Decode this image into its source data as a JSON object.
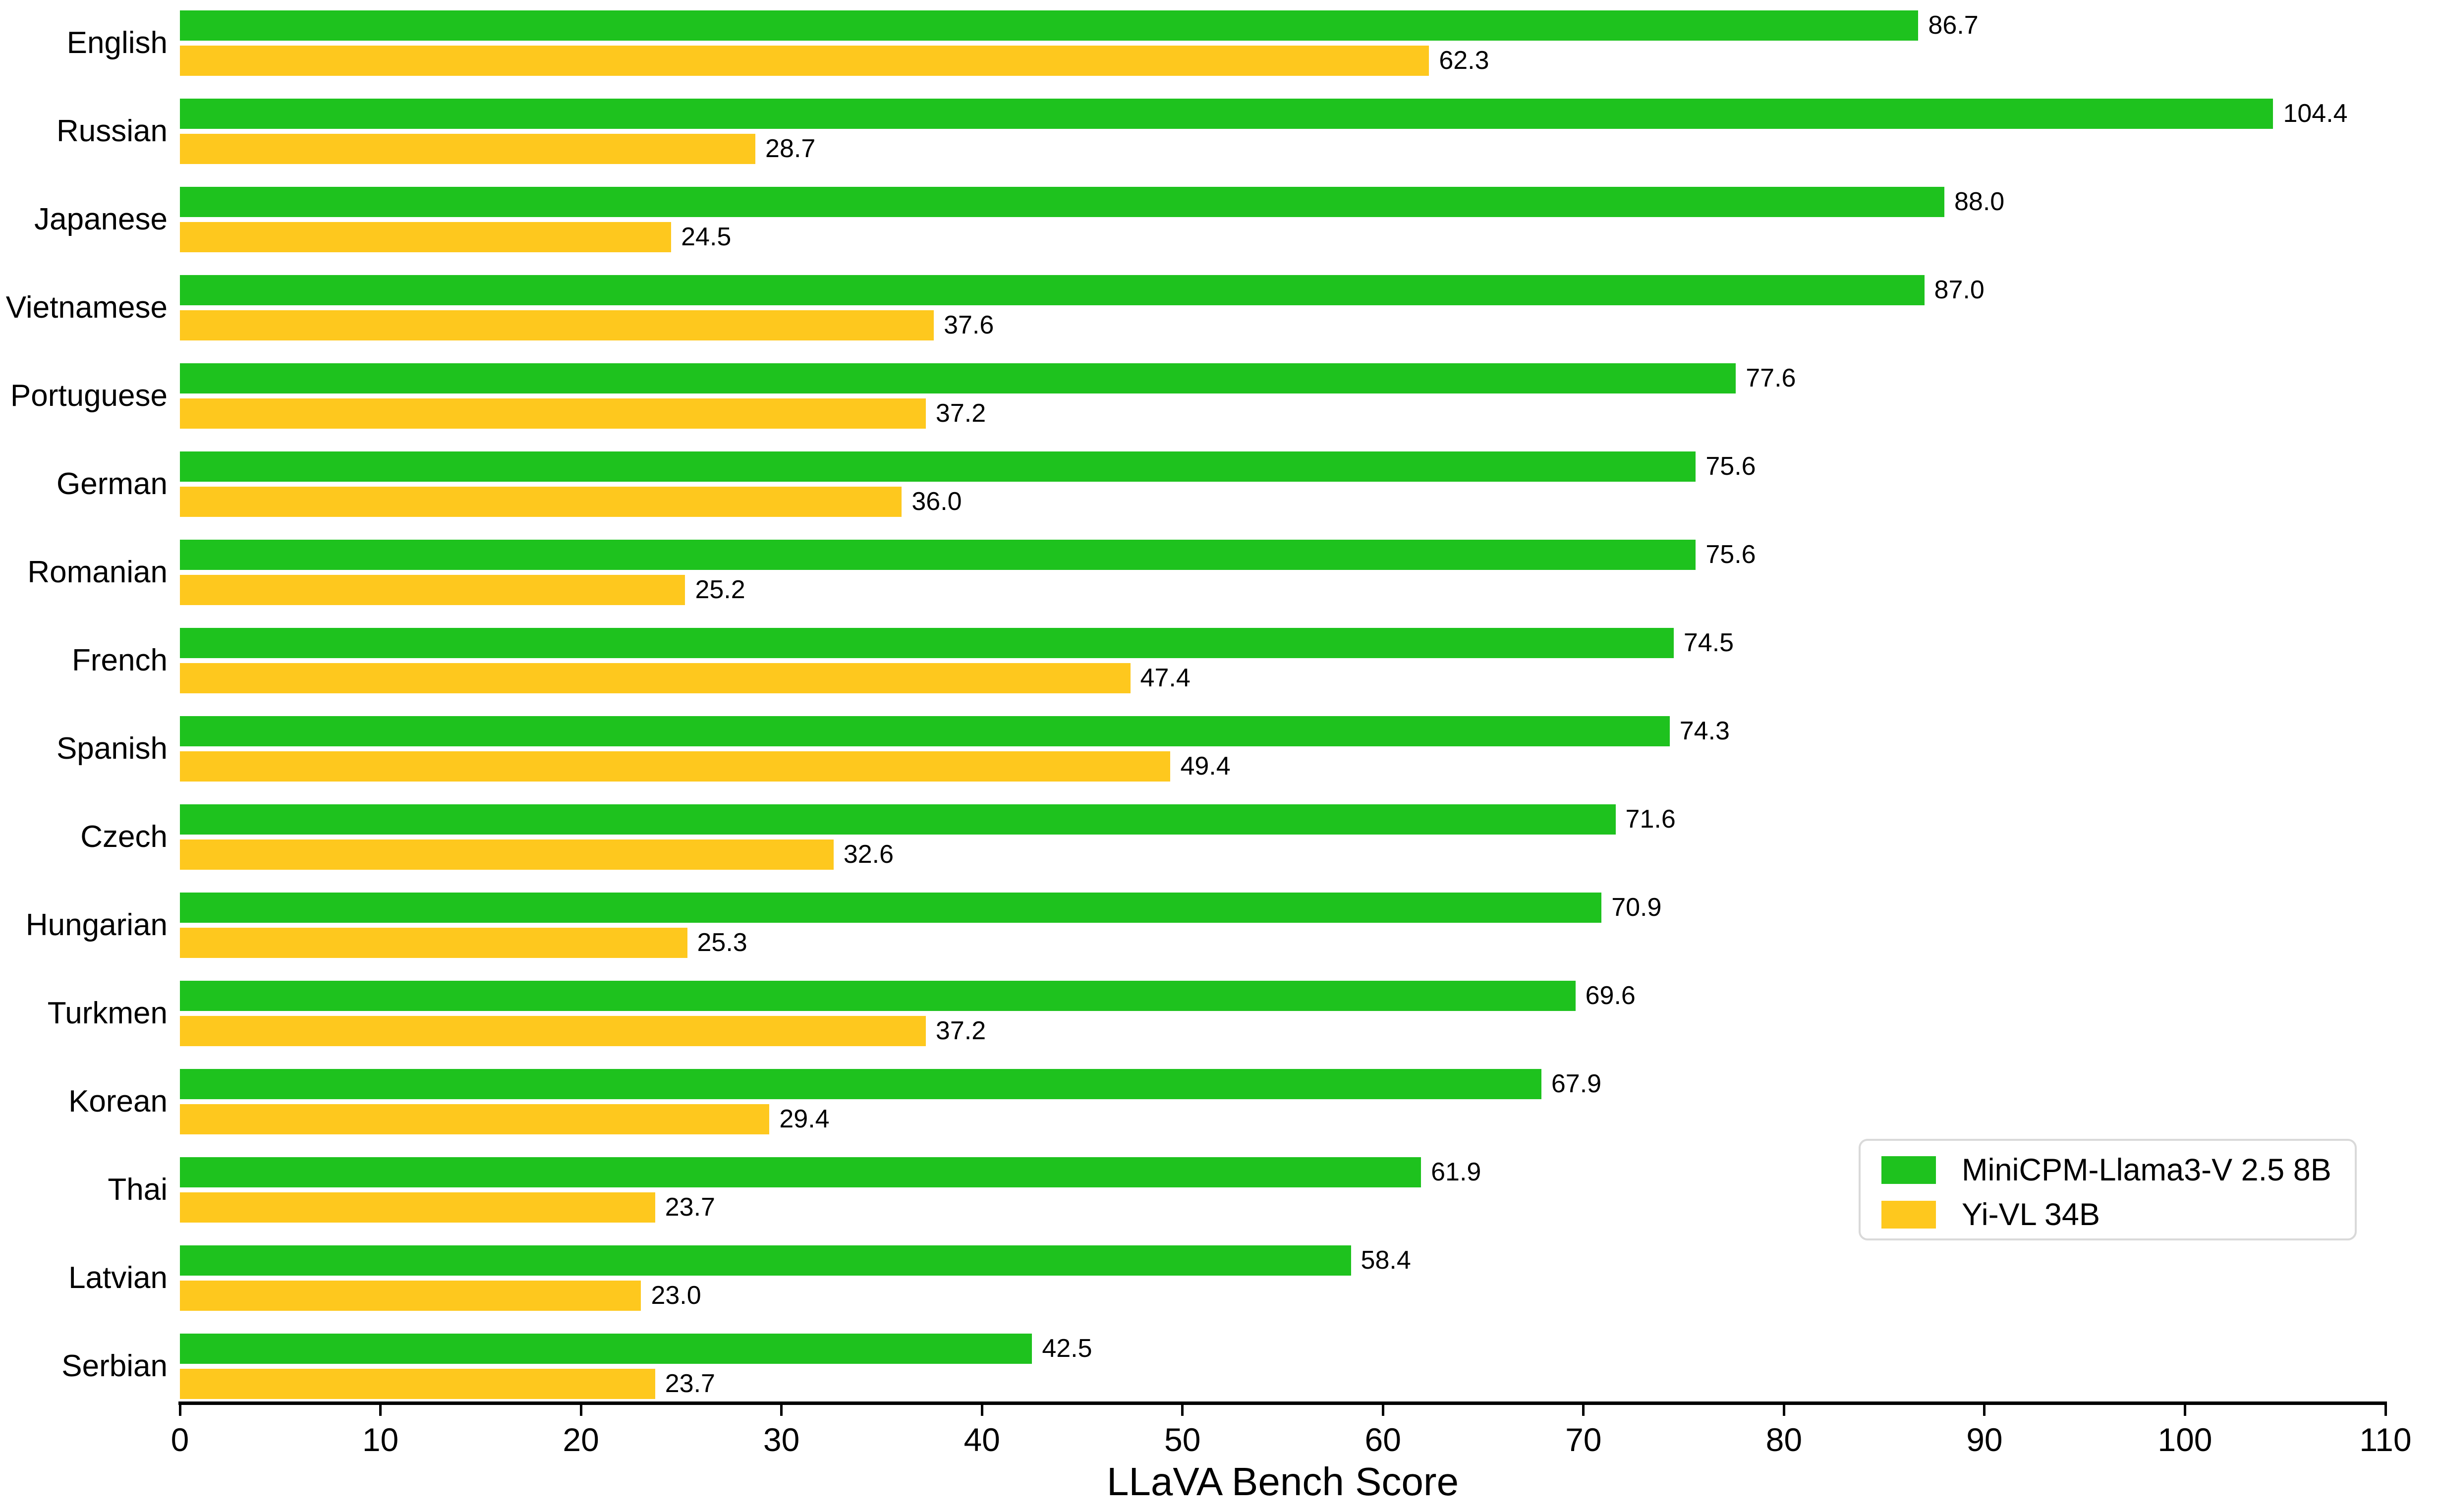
{
  "chart_data": {
    "type": "bar",
    "orientation": "horizontal",
    "title": "",
    "xlabel": "LLaVA Bench Score",
    "ylabel": "",
    "xlim": [
      0,
      110
    ],
    "xticks": [
      0,
      10,
      20,
      30,
      40,
      50,
      60,
      70,
      80,
      90,
      100,
      110
    ],
    "grid": false,
    "legend_position": "lower-right",
    "value_labels": true,
    "value_label_decimals": 1,
    "categories": [
      "English",
      "Russian",
      "Japanese",
      "Vietnamese",
      "Portuguese",
      "German",
      "Romanian",
      "French",
      "Spanish",
      "Czech",
      "Hungarian",
      "Turkmen",
      "Korean",
      "Thai",
      "Latvian",
      "Serbian"
    ],
    "series": [
      {
        "name": "MiniCPM-Llama3-V 2.5 8B",
        "color": "#1ec21e",
        "values": [
          86.7,
          104.4,
          88.0,
          87.0,
          77.6,
          75.6,
          75.6,
          74.5,
          74.3,
          71.6,
          70.9,
          69.6,
          67.9,
          61.9,
          58.4,
          42.5
        ]
      },
      {
        "name": "Yi-VL 34B",
        "color": "#fec81e",
        "values": [
          62.3,
          28.7,
          24.5,
          37.6,
          37.2,
          36.0,
          25.2,
          47.4,
          49.4,
          32.6,
          25.3,
          37.2,
          29.4,
          23.7,
          23.0,
          23.7
        ]
      }
    ]
  },
  "colors": {
    "axis": "#000000",
    "text": "#000000",
    "legend_border": "#d9d9d9",
    "background": "#ffffff"
  }
}
